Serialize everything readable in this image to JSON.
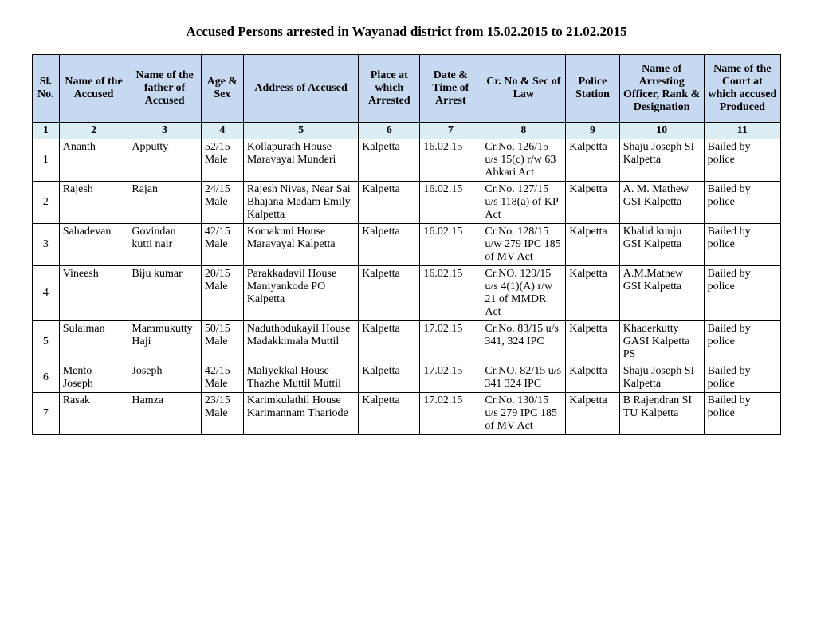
{
  "title": "Accused Persons arrested in Wayanad  district from   15.02.2015 to 21.02.2015",
  "headers": [
    "Sl. No.",
    "Name of the Accused",
    "Name of the father of Accused",
    "Age & Sex",
    "Address of Accused",
    "Place at which Arrested",
    "Date & Time of Arrest",
    "Cr. No & Sec of Law",
    "Police Station",
    "Name of Arresting Officer, Rank & Designation",
    "Name of the Court at which accused Produced"
  ],
  "colnums": [
    "1",
    "2",
    "3",
    "4",
    "5",
    "6",
    "7",
    "8",
    "9",
    "10",
    "11"
  ],
  "rows": [
    {
      "sl": "1",
      "accused": "Ananth",
      "father": "Apputty",
      "age": "52/15 Male",
      "address": "Kollapurath House Maravayal Munderi",
      "place": "Kalpetta",
      "date": "16.02.15",
      "crno": "Cr.No. 126/15 u/s 15(c) r/w 63 Abkari Act",
      "station": "Kalpetta",
      "officer": "Shaju Joseph SI Kalpetta",
      "court": "Bailed by police"
    },
    {
      "sl": "2",
      "accused": "Rajesh",
      "father": "Rajan",
      "age": "24/15 Male",
      "address": "Rajesh Nivas, Near Sai Bhajana Madam Emily Kalpetta",
      "place": "Kalpetta",
      "date": "16.02.15",
      "crno": "Cr.No. 127/15 u/s 118(a) of KP Act",
      "station": "Kalpetta",
      "officer": "A. M. Mathew GSI Kalpetta",
      "court": "Bailed by police"
    },
    {
      "sl": "3",
      "accused": "Sahadevan",
      "father": "Govindan kutti nair",
      "age": "42/15 Male",
      "address": "Komakuni House Maravayal Kalpetta",
      "place": "Kalpetta",
      "date": "16.02.15",
      "crno": "Cr.No. 128/15 u/w 279 IPC 185 of MV Act",
      "station": "Kalpetta",
      "officer": "Khalid kunju GSI Kalpetta",
      "court": "Bailed by police"
    },
    {
      "sl": "4",
      "accused": "Vineesh",
      "father": "Biju kumar",
      "age": "20/15 Male",
      "address": "Parakkadavil House Maniyankode PO Kalpetta",
      "place": "Kalpetta",
      "date": "16.02.15",
      "crno": "Cr.NO. 129/15 u/s 4(1)(A) r/w 21 of MMDR Act",
      "station": "Kalpetta",
      "officer": "A.M.Mathew GSI Kalpetta",
      "court": "Bailed by police"
    },
    {
      "sl": "5",
      "accused": "Sulaiman",
      "father": "Mammukutty Haji",
      "age": "50/15 Male",
      "address": "Naduthodukayil House Madakkimala Muttil",
      "place": "Kalpetta",
      "date": "17.02.15",
      "crno": "Cr.No. 83/15 u/s 341, 324 IPC",
      "station": "Kalpetta",
      "officer": "Khaderkutty GASI Kalpetta PS",
      "court": "Bailed by police"
    },
    {
      "sl": "6",
      "accused": "Mento Joseph",
      "father": "Joseph",
      "age": "42/15 Male",
      "address": "Maliyekkal House Thazhe Muttil Muttil",
      "place": "Kalpetta",
      "date": "17.02.15",
      "crno": "Cr.NO. 82/15 u/s  341 324 IPC",
      "station": "Kalpetta",
      "officer": "Shaju Joseph SI Kalpetta",
      "court": "Bailed by police"
    },
    {
      "sl": "7",
      "accused": "Rasak",
      "father": "Hamza",
      "age": "23/15 Male",
      "address": "Karimkulathil House Karimannam Thariode",
      "place": "Kalpetta",
      "date": "17.02.15",
      "crno": "Cr.No. 130/15 u/s 279 IPC 185 of MV Act",
      "station": "Kalpetta",
      "officer": "B Rajendran SI TU Kalpetta",
      "court": "Bailed by police"
    }
  ]
}
